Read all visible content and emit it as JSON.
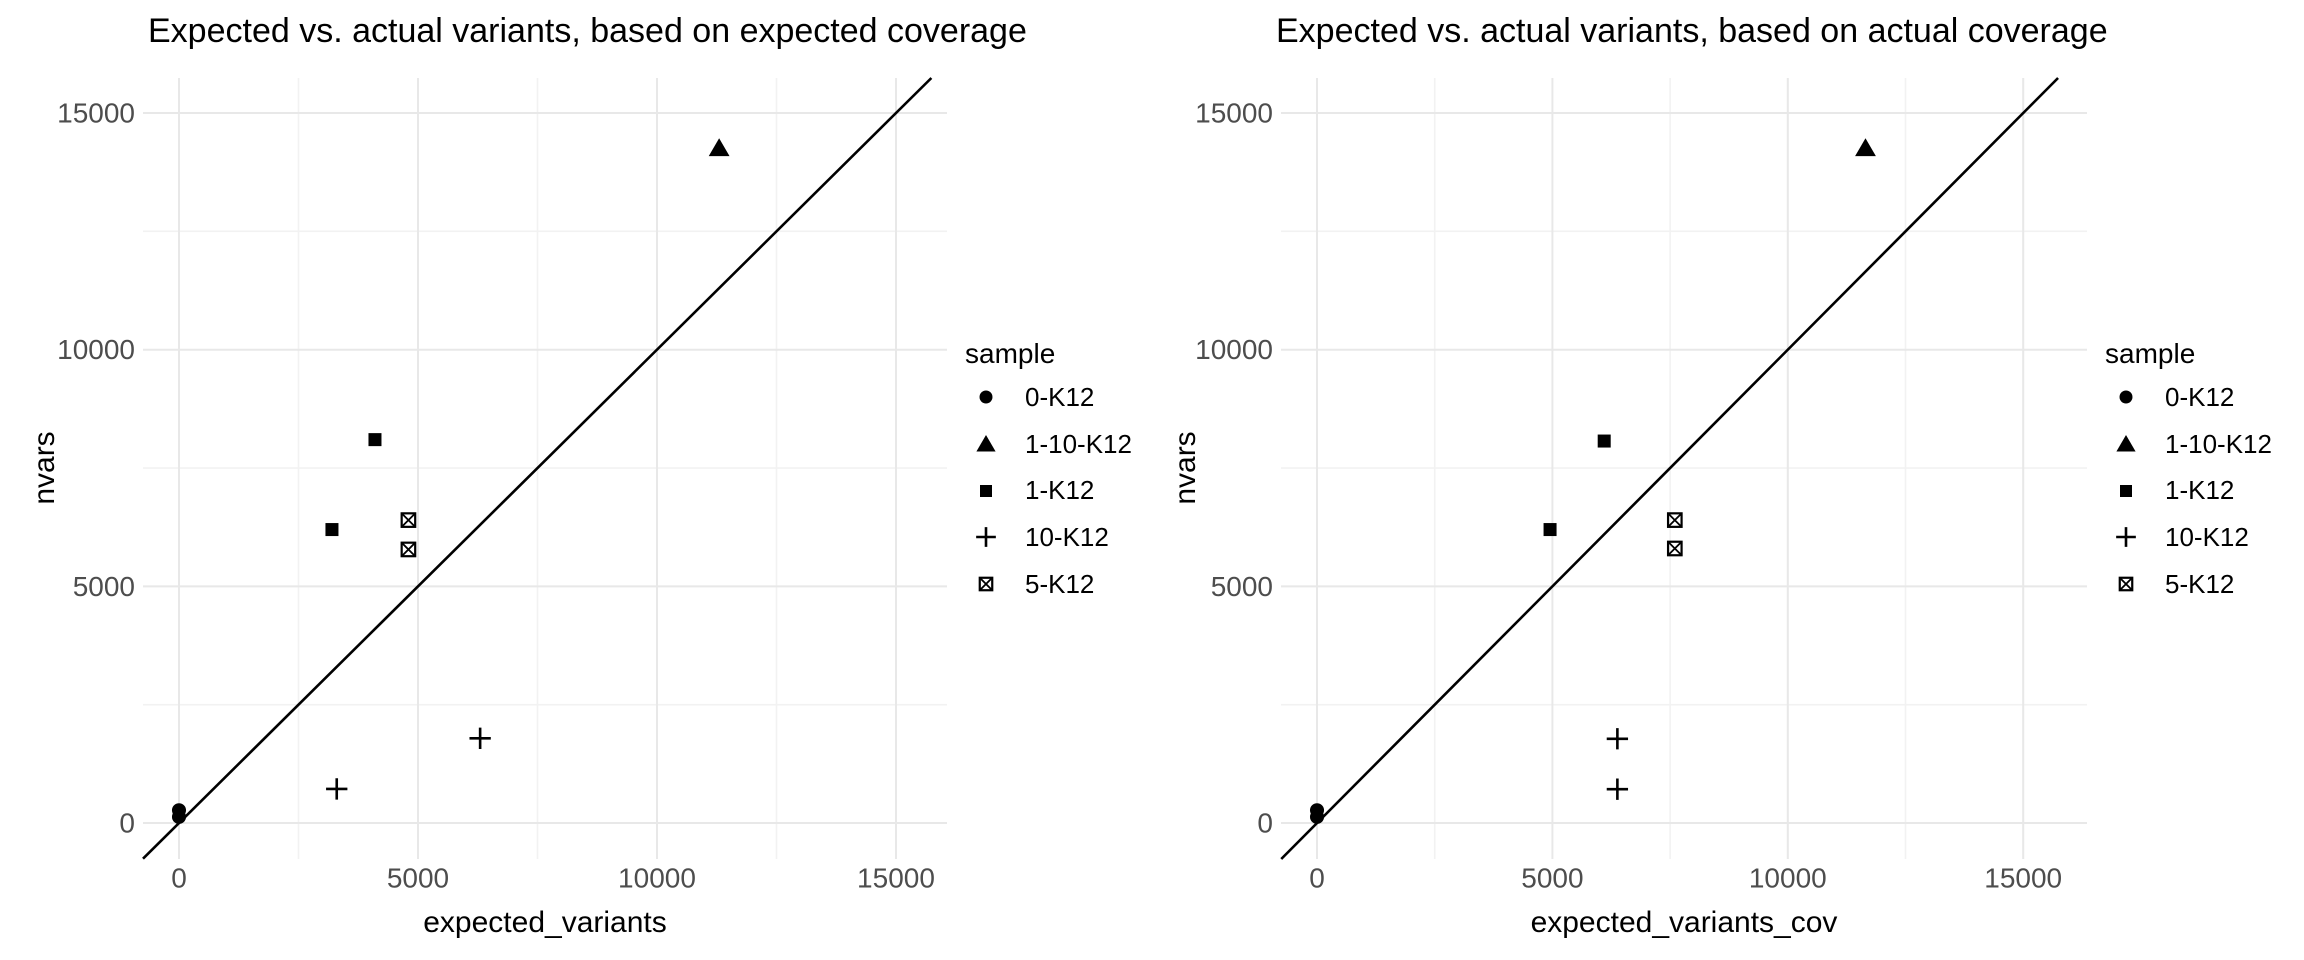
{
  "colors": {
    "background": "#ffffff",
    "point": "#000000",
    "abline": "#000000",
    "grid_major": "#e8e8e8",
    "grid_minor": "#f2f2f2",
    "tick_label": "#4d4d4d",
    "text": "#000000"
  },
  "legend": {
    "title": "sample",
    "items": [
      {
        "label": "0-K12",
        "shape": "circle"
      },
      {
        "label": "1-10-K12",
        "shape": "triangle"
      },
      {
        "label": "1-K12",
        "shape": "square"
      },
      {
        "label": "10-K12",
        "shape": "plus"
      },
      {
        "label": "5-K12",
        "shape": "square-x"
      }
    ]
  },
  "chart_data": [
    {
      "type": "scatter",
      "title": "Expected vs. actual variants, based on expected coverage",
      "xlabel": "expected_variants",
      "ylabel": "nvars",
      "xlim": [
        -753,
        16067
      ],
      "ylim": [
        -760,
        15740
      ],
      "x_ticks": [
        0,
        5000,
        10000,
        15000
      ],
      "y_ticks": [
        0,
        5000,
        10000,
        15000
      ],
      "minor_step": 2500,
      "grid": "on",
      "legend_position": "right",
      "abline": {
        "intercept": 0,
        "slope": 1
      },
      "series": [
        {
          "name": "0-K12",
          "shape": "circle",
          "points": [
            [
              0,
              130
            ],
            [
              0,
              270
            ]
          ]
        },
        {
          "name": "1-10-K12",
          "shape": "triangle",
          "points": [
            [
              11300,
              14260
            ]
          ]
        },
        {
          "name": "1-K12",
          "shape": "square",
          "points": [
            [
              3200,
              6200
            ],
            [
              4100,
              8100
            ]
          ]
        },
        {
          "name": "10-K12",
          "shape": "plus",
          "points": [
            [
              3300,
              720
            ],
            [
              6300,
              1790
            ]
          ]
        },
        {
          "name": "5-K12",
          "shape": "square-x",
          "points": [
            [
              4800,
              6400
            ],
            [
              4800,
              5780
            ]
          ]
        }
      ]
    },
    {
      "type": "scatter",
      "title": "Expected vs. actual variants, based on actual coverage",
      "xlabel": "expected_variants_cov",
      "ylabel": "nvars",
      "xlim": [
        -765,
        16355
      ],
      "ylim": [
        -760,
        15740
      ],
      "x_ticks": [
        0,
        5000,
        10000,
        15000
      ],
      "y_ticks": [
        0,
        5000,
        10000,
        15000
      ],
      "minor_step": 2500,
      "grid": "on",
      "legend_position": "right",
      "abline": {
        "intercept": 0,
        "slope": 1
      },
      "series": [
        {
          "name": "0-K12",
          "shape": "circle",
          "points": [
            [
              0,
              130
            ],
            [
              0,
              270
            ]
          ]
        },
        {
          "name": "1-10-K12",
          "shape": "triangle",
          "points": [
            [
              11650,
              14260
            ]
          ]
        },
        {
          "name": "1-K12",
          "shape": "square",
          "points": [
            [
              4950,
              6200
            ],
            [
              6100,
              8070
            ]
          ]
        },
        {
          "name": "10-K12",
          "shape": "plus",
          "points": [
            [
              6380,
              715
            ],
            [
              6380,
              1780
            ]
          ]
        },
        {
          "name": "5-K12",
          "shape": "square-x",
          "points": [
            [
              7600,
              6400
            ],
            [
              7600,
              5800
            ]
          ]
        }
      ]
    }
  ]
}
